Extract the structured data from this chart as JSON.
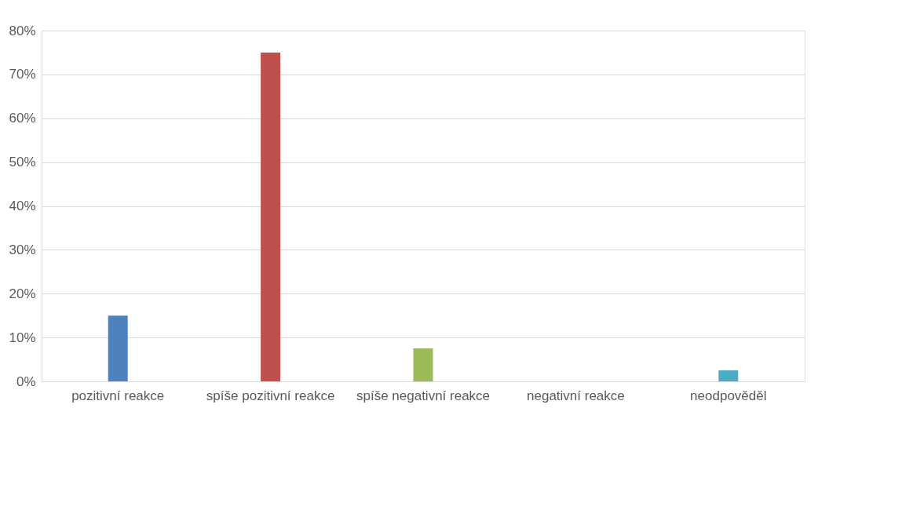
{
  "chart_data": {
    "type": "bar",
    "categories": [
      "pozitivní reakce",
      "spíše pozitivní reakce",
      "spíše negativní reakce",
      "negativní reakce",
      "neodpověděl"
    ],
    "values": [
      15,
      75,
      7.5,
      0,
      2.5
    ],
    "colors": [
      "#4f81bd",
      "#c0504d",
      "#9bbb59",
      "#8064a2",
      "#4bacc6"
    ],
    "ylim": [
      0,
      80
    ],
    "yticks": [
      {
        "value": 0,
        "label": "0%"
      },
      {
        "value": 10,
        "label": "10%"
      },
      {
        "value": 20,
        "label": "20%"
      },
      {
        "value": 30,
        "label": "30%"
      },
      {
        "value": 40,
        "label": "40%"
      },
      {
        "value": 50,
        "label": "50%"
      },
      {
        "value": 60,
        "label": "60%"
      },
      {
        "value": 70,
        "label": "70%"
      },
      {
        "value": 80,
        "label": "80%"
      }
    ],
    "grid": "y"
  }
}
